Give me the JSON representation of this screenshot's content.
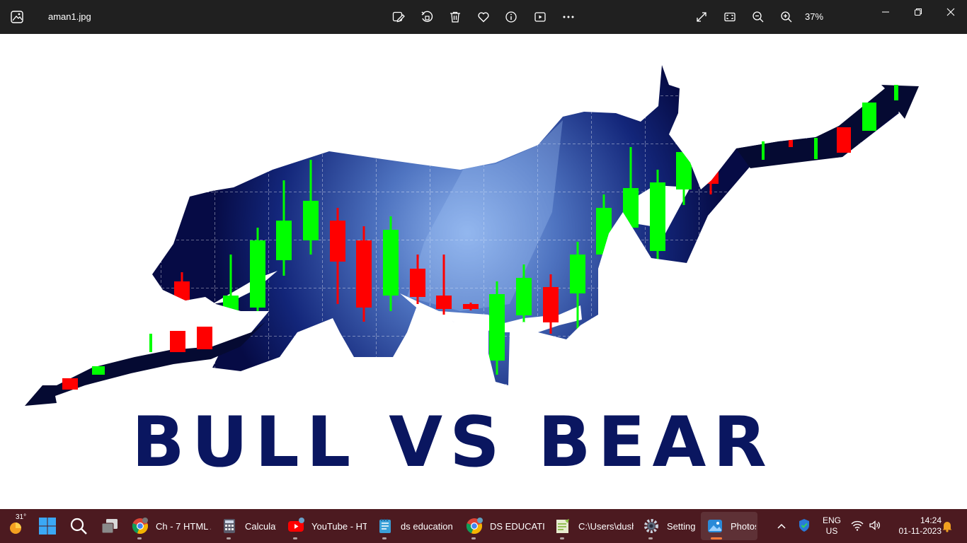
{
  "window": {
    "filename": "aman1.jpg",
    "zoom_level": "37%",
    "toolbar_icons": [
      "edit-image-icon",
      "rotate-icon",
      "delete-icon",
      "favorite-icon",
      "info-icon",
      "slideshow-icon",
      "more-icon"
    ],
    "view_icons": [
      "fullscreen-icon",
      "fit-to-window-icon",
      "zoom-out-icon",
      "zoom-in-icon"
    ],
    "controls": [
      "minimize-icon",
      "restore-icon",
      "close-icon"
    ]
  },
  "image": {
    "title_text": "BULL VS BEAR",
    "colors": {
      "navy": "#0a1660",
      "candle_green": "#00ff00",
      "candle_red": "#ff0000",
      "glow": "#8aaeea"
    }
  },
  "taskbar": {
    "weather_temp": "31°",
    "apps": [
      {
        "label": "Ch - 7 HTML /",
        "icon": "chrome-icon"
      },
      {
        "label": "Calculat",
        "icon": "calculator-icon"
      },
      {
        "label": "YouTube - HT",
        "icon": "youtube-icon"
      },
      {
        "label": "ds education",
        "icon": "notepad-icon"
      },
      {
        "label": "DS EDUCATIO",
        "icon": "chrome-icon"
      },
      {
        "label": "C:\\Users\\dush",
        "icon": "notepad-plus-icon"
      },
      {
        "label": "Setting",
        "icon": "settings-icon"
      },
      {
        "label": "Photos",
        "icon": "photos-icon"
      }
    ],
    "language": "ENG",
    "region": "US",
    "time": "14:24",
    "date": "01-11-2023"
  }
}
